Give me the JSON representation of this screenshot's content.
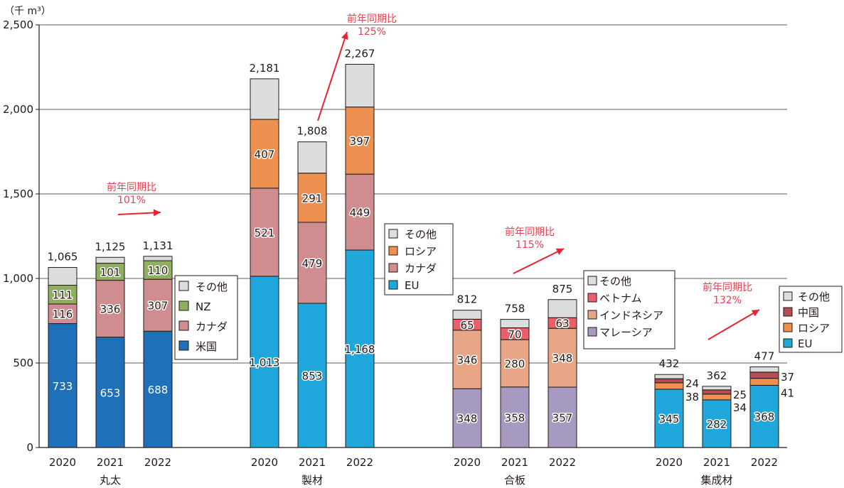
{
  "chart_data": {
    "type": "bar",
    "stacked": true,
    "unit_label": "（千 m³）",
    "ylim": [
      0,
      2500
    ],
    "yticks": [
      0,
      500,
      1000,
      1500,
      2000,
      2500
    ],
    "ytick_labels": [
      "0",
      "500",
      "1,000",
      "1,500",
      "2,000",
      "2,500"
    ],
    "grid": true,
    "colors": {
      "その他": "#dcdddd",
      "NZ": "#8fae5f",
      "カナダ": "#cf8d90",
      "米国": "#1e71b8",
      "ロシア": "#ee9150",
      "EU": "#1fa7dc",
      "ベトナム": "#e9606b",
      "インドネシア": "#e9a686",
      "マレーシア": "#a79ac0",
      "中国": "#b44d55"
    },
    "groups": [
      {
        "category": "丸太",
        "years": [
          "2020",
          "2021",
          "2022"
        ],
        "legend": [
          "その他",
          "NZ",
          "カナダ",
          "米国"
        ],
        "legend_position": "right-of-group",
        "series": [
          {
            "name": "米国",
            "values": [
              733,
              653,
              688
            ],
            "labels": [
              "733",
              "653",
              "688"
            ],
            "label_style": "white"
          },
          {
            "name": "カナダ",
            "values": [
              116,
              336,
              307
            ],
            "labels": [
              "116",
              "336",
              "307"
            ]
          },
          {
            "name": "NZ",
            "values": [
              111,
              101,
              110
            ],
            "labels": [
              "111",
              "101",
              "110"
            ]
          },
          {
            "name": "その他",
            "values": [
              105,
              35,
              26
            ],
            "labels": [
              null,
              null,
              null
            ],
            "derived": true
          }
        ],
        "totals": [
          "1,065",
          "1,125",
          "1,131"
        ],
        "annotation": {
          "title": "前年同期比",
          "value": "101%"
        }
      },
      {
        "category": "製材",
        "years": [
          "2020",
          "2021",
          "2022"
        ],
        "legend": [
          "その他",
          "ロシア",
          "カナダ",
          "EU"
        ],
        "legend_position": "right-of-group",
        "series": [
          {
            "name": "EU",
            "values": [
              1013,
              853,
              1168
            ],
            "labels": [
              "1,013",
              "853",
              "1,168"
            ]
          },
          {
            "name": "カナダ",
            "values": [
              521,
              479,
              449
            ],
            "labels": [
              "521",
              "479",
              "449"
            ]
          },
          {
            "name": "ロシア",
            "values": [
              407,
              291,
              397
            ],
            "labels": [
              "407",
              "291",
              "397"
            ]
          },
          {
            "name": "その他",
            "values": [
              240,
              185,
              253
            ],
            "labels": [
              null,
              null,
              null
            ],
            "derived": true
          }
        ],
        "totals": [
          "2,181",
          "1,808",
          "2,267"
        ],
        "annotation": {
          "title": "前年同期比",
          "value": "125%"
        }
      },
      {
        "category": "合板",
        "years": [
          "2020",
          "2021",
          "2022"
        ],
        "legend": [
          "その他",
          "ベトナム",
          "インドネシア",
          "マレーシア"
        ],
        "legend_position": "right-of-group",
        "series": [
          {
            "name": "マレーシア",
            "values": [
              348,
              358,
              357
            ],
            "labels": [
              "348",
              "358",
              "357"
            ]
          },
          {
            "name": "インドネシア",
            "values": [
              346,
              280,
              348
            ],
            "labels": [
              "346",
              "280",
              "348"
            ]
          },
          {
            "name": "ベトナム",
            "values": [
              65,
              70,
              63
            ],
            "labels": [
              "65",
              "70",
              "63"
            ]
          },
          {
            "name": "その他",
            "values": [
              53,
              50,
              107
            ],
            "labels": [
              null,
              null,
              null
            ],
            "derived": true
          }
        ],
        "totals": [
          "812",
          "758",
          "875"
        ],
        "annotation": {
          "title": "前年同期比",
          "value": "115%"
        }
      },
      {
        "category": "集成材",
        "years": [
          "2020",
          "2021",
          "2022"
        ],
        "legend": [
          "その他",
          "中国",
          "ロシア",
          "EU"
        ],
        "legend_position": "right-of-group",
        "series": [
          {
            "name": "EU",
            "values": [
              345,
              282,
              368
            ],
            "labels": [
              "345",
              "282",
              "368"
            ]
          },
          {
            "name": "ロシア",
            "values": [
              38,
              34,
              41
            ],
            "side_labels": [
              "38",
              "34",
              "41"
            ]
          },
          {
            "name": "中国",
            "values": [
              24,
              25,
              37
            ],
            "side_labels": [
              "24",
              "25",
              "37"
            ]
          },
          {
            "name": "その他",
            "values": [
              25,
              21,
              31
            ],
            "labels": [
              null,
              null,
              null
            ],
            "derived": true
          }
        ],
        "totals": [
          "432",
          "362",
          "477"
        ],
        "annotation": {
          "title": "前年同期比",
          "value": "132%"
        }
      }
    ]
  }
}
